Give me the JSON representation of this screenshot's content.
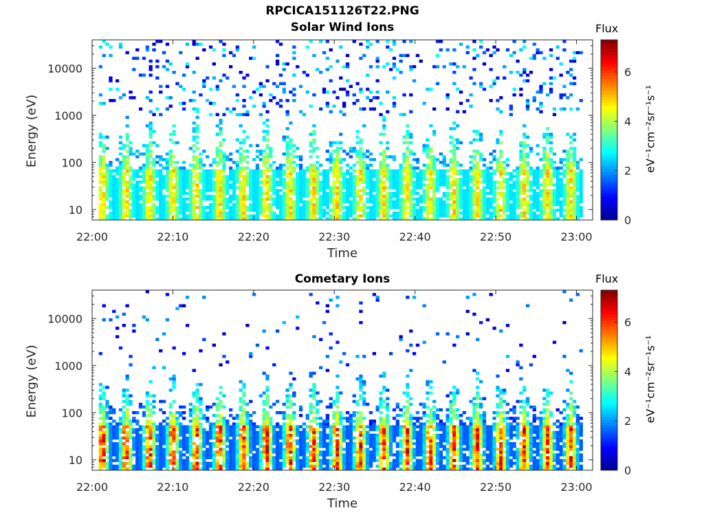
{
  "figure": {
    "title": "RPCICA151126T22.PNG"
  },
  "colorbar": {
    "title": "Flux",
    "units": "eV⁻¹cm⁻²sr⁻¹s⁻¹",
    "ticks": [
      "0",
      "2",
      "4",
      "6"
    ],
    "colormap": "jet",
    "colors": [
      "#00008f",
      "#0000ff",
      "#0080ff",
      "#00ffff",
      "#80ff80",
      "#ffff00",
      "#ff8000",
      "#ff0000",
      "#800000"
    ]
  },
  "chart_data": [
    {
      "type": "heatmap",
      "title": "Solar Wind Ions",
      "xlabel": "Time",
      "ylabel": "Energy (eV)",
      "x_ticks": [
        "22:00",
        "22:10",
        "22:20",
        "22:30",
        "22:40",
        "22:50",
        "23:00"
      ],
      "xlim": [
        "22:00",
        "23:02"
      ],
      "y_scale": "log",
      "y_ticks": [
        "10",
        "100",
        "1000",
        "10000"
      ],
      "ylim": [
        6,
        40000
      ],
      "color_range": [
        0,
        7.3
      ],
      "pulse_period_min": 2.9,
      "core_energy_range_eV": [
        10,
        60
      ],
      "peak_flux": 5.0,
      "background_flux": 2.5,
      "grid": false
    },
    {
      "type": "heatmap",
      "title": "Cometary Ions",
      "xlabel": "Time",
      "ylabel": "Energy (eV)",
      "x_ticks": [
        "22:00",
        "22:10",
        "22:20",
        "22:30",
        "22:40",
        "22:50",
        "23:00"
      ],
      "xlim": [
        "22:00",
        "23:02"
      ],
      "y_scale": "log",
      "y_ticks": [
        "10",
        "100",
        "1000",
        "10000"
      ],
      "ylim": [
        6,
        40000
      ],
      "color_range": [
        0,
        7.3
      ],
      "pulse_period_min": 2.9,
      "core_energy_range_eV": [
        10,
        50
      ],
      "peak_flux": 6.5,
      "background_flux": 1.5,
      "grid": false
    }
  ]
}
